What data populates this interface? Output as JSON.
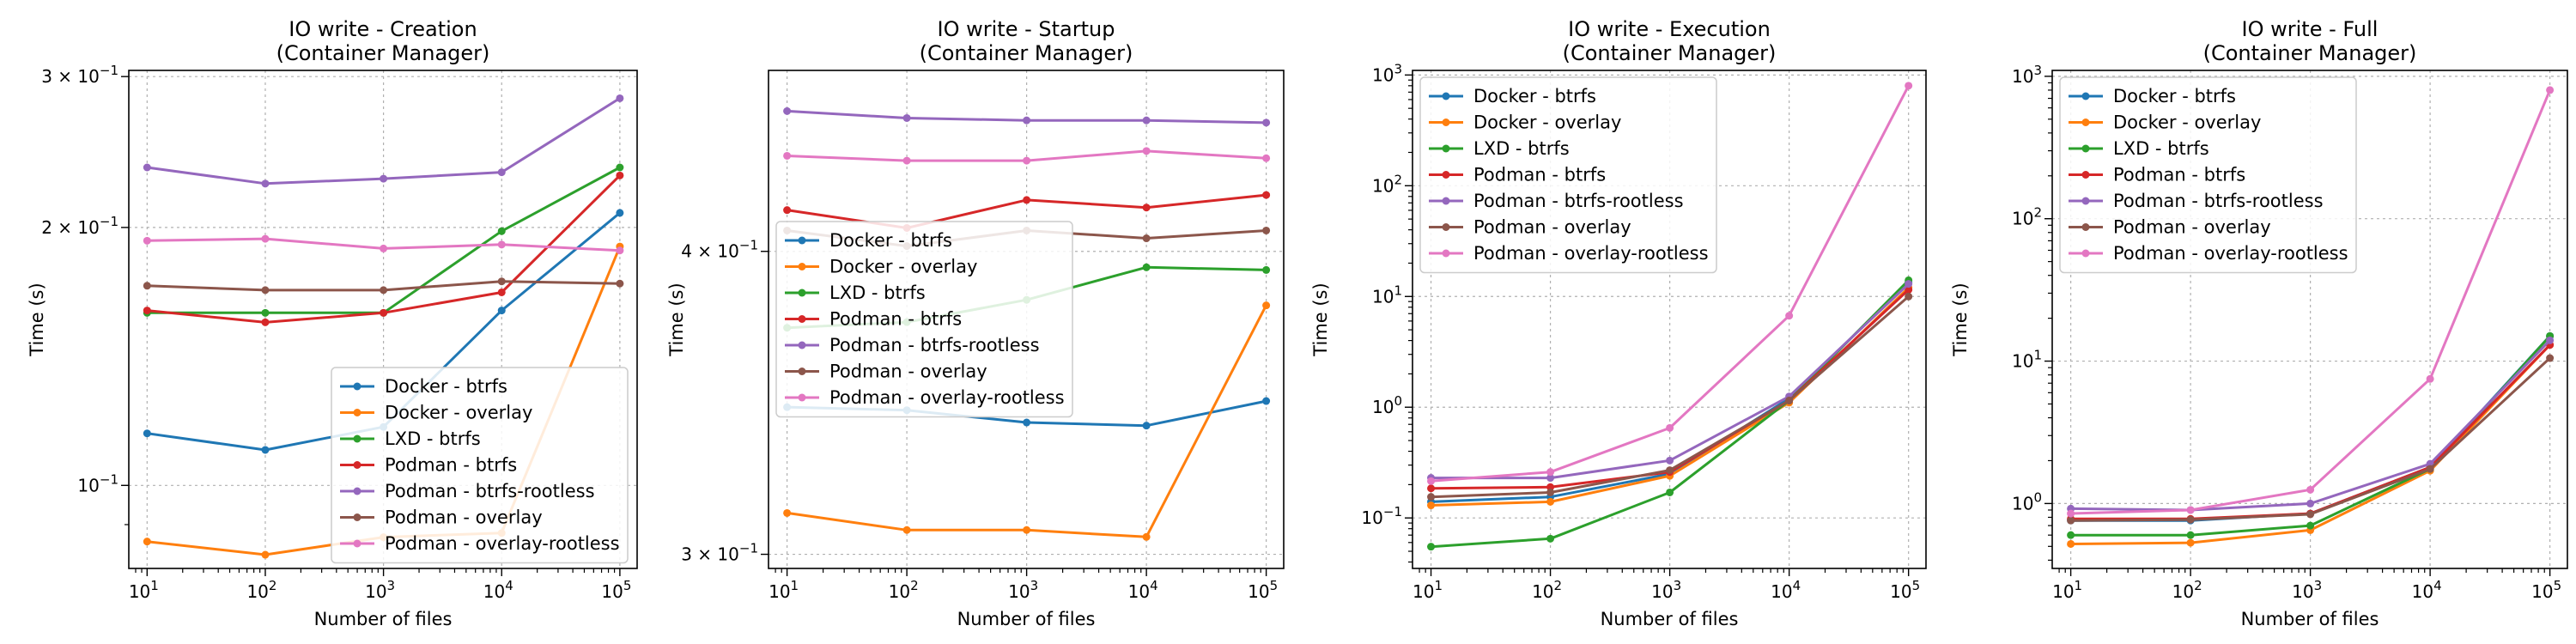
{
  "colors": {
    "docker_btrfs": "#1f77b4",
    "docker_overlay": "#ff7f0e",
    "lxd_btrfs": "#2ca02c",
    "podman_btrfs": "#d62728",
    "podman_btrfs_rootless": "#9467bd",
    "podman_overlay": "#8c564b",
    "podman_overlay_rootless": "#e377c2"
  },
  "chart_data": [
    {
      "type": "line",
      "title": "IO write - Creation",
      "subtitle": "(Container Manager)",
      "xlabel": "Number of files",
      "ylabel": "Time (s)",
      "xscale": "log",
      "yscale": "log",
      "x": [
        10,
        100,
        1000,
        10000,
        100000
      ],
      "x_ticks": [
        {
          "base": "10",
          "exp": "1"
        },
        {
          "base": "10",
          "exp": "2"
        },
        {
          "base": "10",
          "exp": "3"
        },
        {
          "base": "10",
          "exp": "4"
        },
        {
          "base": "10",
          "exp": "5"
        }
      ],
      "xlim": [
        7,
        140000
      ],
      "ylim": [
        0.08,
        0.305
      ],
      "y_ticks": [
        {
          "value": 0.1,
          "base": "10",
          "exp": "−1"
        },
        {
          "value": 0.2,
          "base": "2 × 10",
          "exp": "−1"
        },
        {
          "value": 0.3,
          "base": "3 × 10",
          "exp": "−1"
        }
      ],
      "grid": true,
      "legend_position": "lower-right",
      "series": [
        {
          "name": "Docker - btrfs",
          "color": "#1f77b4",
          "values": [
            0.115,
            0.11,
            0.117,
            0.16,
            0.208
          ]
        },
        {
          "name": "Docker - overlay",
          "color": "#ff7f0e",
          "values": [
            0.086,
            0.083,
            0.087,
            0.088,
            0.19
          ]
        },
        {
          "name": "LXD - btrfs",
          "color": "#2ca02c",
          "values": [
            0.159,
            0.159,
            0.159,
            0.198,
            0.235
          ]
        },
        {
          "name": "Podman - btrfs",
          "color": "#d62728",
          "values": [
            0.16,
            0.155,
            0.159,
            0.168,
            0.23
          ]
        },
        {
          "name": "Podman - btrfs-rootless",
          "color": "#9467bd",
          "values": [
            0.235,
            0.225,
            0.228,
            0.232,
            0.283
          ]
        },
        {
          "name": "Podman - overlay",
          "color": "#8c564b",
          "values": [
            0.171,
            0.169,
            0.169,
            0.173,
            0.172
          ]
        },
        {
          "name": "Podman - overlay-rootless",
          "color": "#e377c2",
          "values": [
            0.193,
            0.194,
            0.189,
            0.191,
            0.188
          ]
        }
      ]
    },
    {
      "type": "line",
      "title": "IO write - Startup",
      "subtitle": "(Container Manager)",
      "xlabel": "Number of files",
      "ylabel": "Time (s)",
      "xscale": "log",
      "yscale": "log",
      "x": [
        10,
        100,
        1000,
        10000,
        100000
      ],
      "x_ticks": [
        {
          "base": "10",
          "exp": "1"
        },
        {
          "base": "10",
          "exp": "2"
        },
        {
          "base": "10",
          "exp": "3"
        },
        {
          "base": "10",
          "exp": "4"
        },
        {
          "base": "10",
          "exp": "5"
        }
      ],
      "xlim": [
        7,
        140000
      ],
      "ylim": [
        0.296,
        0.475
      ],
      "y_ticks": [
        {
          "value": 0.3,
          "base": "3 × 10",
          "exp": "−1"
        },
        {
          "value": 0.4,
          "base": "4 × 10",
          "exp": "−1"
        }
      ],
      "grid": true,
      "legend_position": "center-left",
      "series": [
        {
          "name": "Docker - btrfs",
          "color": "#1f77b4",
          "values": [
            0.345,
            0.344,
            0.34,
            0.339,
            0.347
          ]
        },
        {
          "name": "Docker - overlay",
          "color": "#ff7f0e",
          "values": [
            0.312,
            0.307,
            0.307,
            0.305,
            0.38
          ]
        },
        {
          "name": "LXD - btrfs",
          "color": "#2ca02c",
          "values": [
            0.372,
            0.374,
            0.382,
            0.394,
            0.393
          ]
        },
        {
          "name": "Podman - btrfs",
          "color": "#d62728",
          "values": [
            0.416,
            0.409,
            0.42,
            0.417,
            0.422
          ]
        },
        {
          "name": "Podman - btrfs-rootless",
          "color": "#9467bd",
          "values": [
            0.457,
            0.454,
            0.453,
            0.453,
            0.452
          ]
        },
        {
          "name": "Podman - overlay",
          "color": "#8c564b",
          "values": [
            0.408,
            0.402,
            0.408,
            0.405,
            0.408
          ]
        },
        {
          "name": "Podman - overlay-rootless",
          "color": "#e377c2",
          "values": [
            0.438,
            0.436,
            0.436,
            0.44,
            0.437
          ]
        }
      ]
    },
    {
      "type": "line",
      "title": "IO write - Execution",
      "subtitle": "(Container Manager)",
      "xlabel": "Number of files",
      "ylabel": "Time (s)",
      "xscale": "log",
      "yscale": "log",
      "x": [
        10,
        100,
        1000,
        10000,
        100000
      ],
      "x_ticks": [
        {
          "base": "10",
          "exp": "1"
        },
        {
          "base": "10",
          "exp": "2"
        },
        {
          "base": "10",
          "exp": "3"
        },
        {
          "base": "10",
          "exp": "4"
        },
        {
          "base": "10",
          "exp": "5"
        }
      ],
      "xlim": [
        7,
        140000
      ],
      "ylim": [
        0.035,
        1100
      ],
      "y_ticks": [
        {
          "value": 0.1,
          "base": "10",
          "exp": "−1"
        },
        {
          "value": 1,
          "base": "10",
          "exp": "0"
        },
        {
          "value": 10,
          "base": "10",
          "exp": "1"
        },
        {
          "value": 100,
          "base": "10",
          "exp": "2"
        },
        {
          "value": 1000,
          "base": "10",
          "exp": "3"
        }
      ],
      "grid": true,
      "legend_position": "upper-left",
      "series": [
        {
          "name": "Docker - btrfs",
          "color": "#1f77b4",
          "values": [
            0.14,
            0.155,
            0.25,
            1.2,
            13.5
          ]
        },
        {
          "name": "Docker - overlay",
          "color": "#ff7f0e",
          "values": [
            0.13,
            0.14,
            0.24,
            1.1,
            12
          ]
        },
        {
          "name": "LXD - btrfs",
          "color": "#2ca02c",
          "values": [
            0.055,
            0.065,
            0.17,
            1.15,
            14
          ]
        },
        {
          "name": "Podman - btrfs",
          "color": "#d62728",
          "values": [
            0.185,
            0.19,
            0.26,
            1.15,
            11.5
          ]
        },
        {
          "name": "Podman - btrfs-rootless",
          "color": "#9467bd",
          "values": [
            0.23,
            0.23,
            0.33,
            1.25,
            13
          ]
        },
        {
          "name": "Podman - overlay",
          "color": "#8c564b",
          "values": [
            0.155,
            0.17,
            0.27,
            1.15,
            10
          ]
        },
        {
          "name": "Podman - overlay-rootless",
          "color": "#e377c2",
          "values": [
            0.215,
            0.26,
            0.65,
            6.7,
            800
          ]
        }
      ]
    },
    {
      "type": "line",
      "title": "IO write - Full",
      "subtitle": "(Container Manager)",
      "xlabel": "Number of files",
      "ylabel": "Time (s)",
      "xscale": "log",
      "yscale": "log",
      "x": [
        10,
        100,
        1000,
        10000,
        100000
      ],
      "x_ticks": [
        {
          "base": "10",
          "exp": "1"
        },
        {
          "base": "10",
          "exp": "2"
        },
        {
          "base": "10",
          "exp": "3"
        },
        {
          "base": "10",
          "exp": "4"
        },
        {
          "base": "10",
          "exp": "5"
        }
      ],
      "xlim": [
        7,
        140000
      ],
      "ylim": [
        0.35,
        1100
      ],
      "y_ticks": [
        {
          "value": 1,
          "base": "10",
          "exp": "0"
        },
        {
          "value": 10,
          "base": "10",
          "exp": "1"
        },
        {
          "value": 100,
          "base": "10",
          "exp": "2"
        },
        {
          "value": 1000,
          "base": "10",
          "exp": "3"
        }
      ],
      "grid": true,
      "legend_position": "upper-left",
      "series": [
        {
          "name": "Docker - btrfs",
          "color": "#1f77b4",
          "values": [
            0.76,
            0.76,
            0.85,
            1.8,
            15
          ]
        },
        {
          "name": "Docker - overlay",
          "color": "#ff7f0e",
          "values": [
            0.52,
            0.53,
            0.65,
            1.7,
            13
          ]
        },
        {
          "name": "LXD - btrfs",
          "color": "#2ca02c",
          "values": [
            0.6,
            0.6,
            0.7,
            1.75,
            15
          ]
        },
        {
          "name": "Podman - btrfs",
          "color": "#d62728",
          "values": [
            0.78,
            0.78,
            0.85,
            1.8,
            13
          ]
        },
        {
          "name": "Podman - btrfs-rootless",
          "color": "#9467bd",
          "values": [
            0.92,
            0.9,
            1.0,
            1.9,
            14
          ]
        },
        {
          "name": "Podman - overlay",
          "color": "#8c564b",
          "values": [
            0.76,
            0.77,
            0.84,
            1.75,
            10.5
          ]
        },
        {
          "name": "Podman - overlay-rootless",
          "color": "#e377c2",
          "values": [
            0.85,
            0.9,
            1.25,
            7.5,
            800
          ]
        }
      ]
    }
  ]
}
